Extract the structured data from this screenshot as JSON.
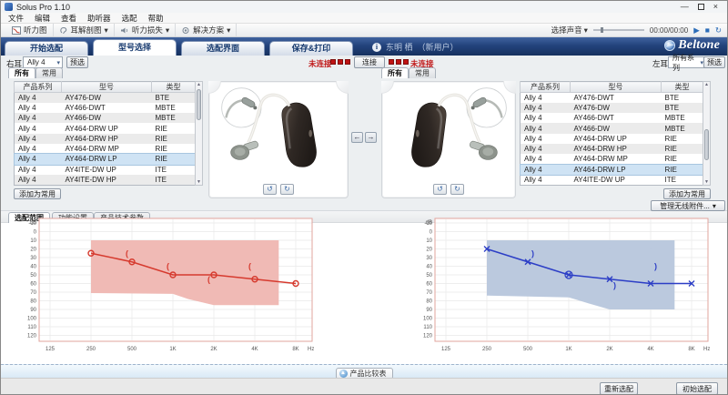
{
  "window": {
    "title": "Solus Pro 1.10"
  },
  "menu": {
    "items": [
      "文件",
      "编辑",
      "查看",
      "助听器",
      "选配",
      "帮助"
    ]
  },
  "toolbar": {
    "audiogram": "听力图",
    "ear_anatomy": "耳解剖图",
    "hearing_loss": "听力损失",
    "solutions": "解决方案",
    "select_sound": "选择声音",
    "time": "00:00/00:00"
  },
  "brand": {
    "name": "Beltone"
  },
  "tabs": [
    {
      "label": "开始选配",
      "active": false
    },
    {
      "label": "型号选择",
      "active": true
    },
    {
      "label": "选配界面",
      "active": false
    },
    {
      "label": "保存&打印",
      "active": false
    }
  ],
  "patient": {
    "name": "东明 栖",
    "tag": "（新用户）"
  },
  "ears": {
    "right": {
      "label": "右耳",
      "series": "Ally 4",
      "preselect": "预选"
    },
    "left": {
      "label": "左耳",
      "series": "所有系列",
      "preselect": "预选"
    }
  },
  "connection": {
    "status_right_ear": "未连接",
    "connect": "连接",
    "status_left_ear": "未连接"
  },
  "panel_tabs": {
    "all": "所有",
    "favorites": "常用"
  },
  "tables": {
    "headers": [
      "产品系列",
      "型号",
      "类型"
    ],
    "right_ear_rows": [
      [
        "Ally 4",
        "AY476-DW",
        "BTE"
      ],
      [
        "Ally 4",
        "AY466-DWT",
        "MBTE"
      ],
      [
        "Ally 4",
        "AY466-DW",
        "MBTE"
      ],
      [
        "Ally 4",
        "AY464-DRW UP",
        "RIE"
      ],
      [
        "Ally 4",
        "AY464-DRW HP",
        "RIE"
      ],
      [
        "Ally 4",
        "AY464-DRW MP",
        "RIE"
      ],
      [
        "Ally 4",
        "AY464-DRW LP",
        "RIE"
      ],
      [
        "Ally 4",
        "AY4ITE-DW UP",
        "ITE"
      ],
      [
        "Ally 4",
        "AY4ITE-DW HP",
        "ITE"
      ]
    ],
    "right_ear_selected_index": 6,
    "left_ear_rows": [
      [
        "Ally 4",
        "AY476-DWT",
        "BTE"
      ],
      [
        "Ally 4",
        "AY476-DW",
        "BTE"
      ],
      [
        "Ally 4",
        "AY466-DWT",
        "MBTE"
      ],
      [
        "Ally 4",
        "AY466-DW",
        "MBTE"
      ],
      [
        "Ally 4",
        "AY464-DRW UP",
        "RIE"
      ],
      [
        "Ally 4",
        "AY464-DRW HP",
        "RIE"
      ],
      [
        "Ally 4",
        "AY464-DRW MP",
        "RIE"
      ],
      [
        "Ally 4",
        "AY464-DRW LP",
        "RIE"
      ],
      [
        "Ally 4",
        "AY4ITE-DW UP",
        "ITE"
      ]
    ],
    "left_ear_selected_index": 7,
    "add_favorite": "添加为常用"
  },
  "accessories_button": "管理无线附件...",
  "chart_tabs": [
    {
      "label": "选配范围",
      "active": true
    },
    {
      "label": "功能设置",
      "active": false
    },
    {
      "label": "产品技术参数",
      "active": false
    }
  ],
  "chart_data": [
    {
      "type": "line",
      "name": "right-ear-fitting-range-audiogram",
      "ear": "right",
      "color": "#d63a2e",
      "region_color": "#efb6b1",
      "x": [
        250,
        500,
        1000,
        2000,
        4000,
        8000
      ],
      "series": [
        {
          "name": "air-conduction-threshold",
          "marker": "circle",
          "values": [
            25,
            35,
            50,
            50,
            55,
            60
          ]
        },
        {
          "name": "bone-conduction-threshold",
          "marker": "(",
          "points": [
            [
              500,
              25
            ],
            [
              1000,
              40
            ],
            [
              2000,
              55
            ],
            [
              4000,
              40
            ]
          ]
        }
      ],
      "region": {
        "top_dB": 10,
        "bottom": [
          [
            250,
            71
          ],
          [
            1000,
            72
          ],
          [
            1300,
            78
          ],
          [
            2000,
            85
          ],
          [
            6000,
            85
          ]
        ],
        "x_start": 250,
        "x_end": 6000
      },
      "x_ticks": [
        "125",
        "250",
        "500",
        "1K",
        "2K",
        "4K",
        "8K"
      ],
      "x_tick_freqs": [
        125,
        250,
        500,
        1000,
        2000,
        4000,
        8000
      ],
      "xlabel": "Hz",
      "ylabel": "dB",
      "ylim": [
        -10,
        120
      ],
      "y_step": 10,
      "grid": true
    },
    {
      "type": "line",
      "name": "left-ear-fitting-range-audiogram",
      "ear": "left",
      "color": "#2c3ec6",
      "region_color": "#b7c6dc",
      "x": [
        250,
        500,
        1000,
        2000,
        4000,
        8000
      ],
      "series": [
        {
          "name": "air-conduction-threshold",
          "marker": "x",
          "values": [
            20,
            35,
            50,
            55,
            60,
            60
          ]
        },
        {
          "name": "bone-conduction-threshold",
          "marker": ")",
          "points": [
            [
              500,
              25
            ],
            [
              2000,
              62
            ],
            [
              4000,
              40
            ]
          ]
        }
      ],
      "extra_marker": {
        "marker": "circle",
        "point": [
          1000,
          50
        ]
      },
      "region": {
        "top_dB": 10,
        "bottom": [
          [
            250,
            74
          ],
          [
            1000,
            76
          ],
          [
            1400,
            83
          ],
          [
            2000,
            90
          ],
          [
            6000,
            90
          ]
        ],
        "x_start": 250,
        "x_end": 6000
      },
      "x_ticks": [
        "125",
        "250",
        "500",
        "1K",
        "2K",
        "4K",
        "8K"
      ],
      "x_tick_freqs": [
        125,
        250,
        500,
        1000,
        2000,
        4000,
        8000
      ],
      "xlabel": "Hz",
      "ylabel": "dB",
      "ylim": [
        -10,
        120
      ],
      "y_step": 10,
      "grid": true
    }
  ],
  "comparison_button": "产品比较表",
  "footer": {
    "refit": "重新选配",
    "initial_fit": "初始选配"
  },
  "icons": {
    "dropdown": "▾",
    "play": "▶",
    "stop": "■",
    "loop": "↻",
    "swap_left": "←",
    "swap_right": "→",
    "rotate_left": "↺",
    "rotate_right": "↻",
    "info": "i",
    "minimize": "—",
    "close": "×",
    "up_arrow": "▲",
    "scroll_up": "▲",
    "scroll_down": "▼"
  }
}
